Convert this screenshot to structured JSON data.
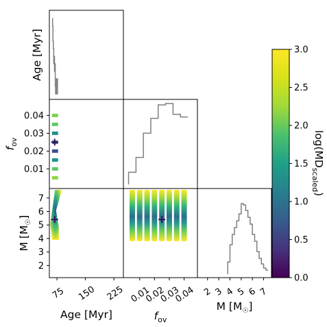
{
  "chart_data": {
    "type": "corner",
    "parameters": [
      {
        "key": "age",
        "label": "Age [Myr]",
        "range": [
          55,
          250
        ],
        "ticks": [
          75,
          150,
          225
        ]
      },
      {
        "key": "fov",
        "label": "f_ov",
        "range": [
          -0.001,
          0.049
        ],
        "ticks": [
          0.01,
          0.02,
          0.03,
          0.04
        ],
        "left_ticks": [
          0.01,
          0.02,
          0.03,
          0.04
        ]
      },
      {
        "key": "mass",
        "label": "M [M_sun]",
        "range": [
          1.1,
          7.7
        ],
        "ticks": [
          2,
          3,
          4,
          5,
          6,
          7
        ]
      }
    ],
    "tick_labels": {
      "age": [
        "75",
        "150",
        "225"
      ],
      "fov_bottom": [
        "0.01",
        "0.02",
        "0.03",
        "0.04"
      ],
      "fov_left": [
        "0.01",
        "0.02",
        "0.03",
        "0.04"
      ],
      "mass": [
        "2",
        "3",
        "4",
        "5",
        "6",
        "7"
      ]
    },
    "axis_labels": {
      "age": "Age [Myr]",
      "fov": "f",
      "fov_sub": "ov",
      "mass": "M [M",
      "mass_suffix": "]"
    },
    "best_fit": {
      "age": 69,
      "fov": 0.025,
      "mass": 5.4
    },
    "fov_grid": [
      0.005,
      0.01,
      0.015,
      0.02,
      0.025,
      0.03,
      0.035,
      0.04
    ],
    "hist_age": {
      "x": [
        63,
        64,
        65,
        66,
        67,
        68,
        69,
        70,
        71,
        72,
        73,
        74,
        75,
        76,
        77
      ],
      "counts": [
        10,
        9,
        7,
        6,
        4,
        5,
        3,
        4,
        1,
        0,
        0,
        2,
        1,
        2,
        0
      ],
      "max": 10
    },
    "hist_fov": {
      "x": [
        0.005,
        0.01,
        0.015,
        0.02,
        0.025,
        0.03,
        0.035,
        0.04
      ],
      "counts": [
        18,
        40,
        76,
        98,
        118,
        120,
        104,
        100
      ],
      "max": 120
    },
    "hist_mass": {
      "x": [
        3.9,
        4.1,
        4.3,
        4.5,
        4.7,
        4.9,
        5.1,
        5.3,
        5.5,
        5.7,
        5.9,
        6.1,
        6.3,
        6.5,
        6.7,
        6.9,
        7.1,
        7.3
      ],
      "counts": [
        15,
        40,
        55,
        65,
        75,
        85,
        100,
        98,
        90,
        80,
        70,
        55,
        45,
        30,
        20,
        12,
        6,
        3
      ],
      "max": 100
    },
    "colorbar": {
      "label": "log(MD",
      "label_sub": "scaled",
      "label_suffix": ")",
      "range": [
        0.0,
        3.0
      ],
      "ticks": [
        "0.0",
        "0.5",
        "1.0",
        "1.5",
        "2.0",
        "2.5",
        "3.0"
      ],
      "colormap": "viridis"
    },
    "colors": {
      "hist_line": "#7f7f7f",
      "marker": "#3b0b5a",
      "axes": "#000000"
    }
  }
}
